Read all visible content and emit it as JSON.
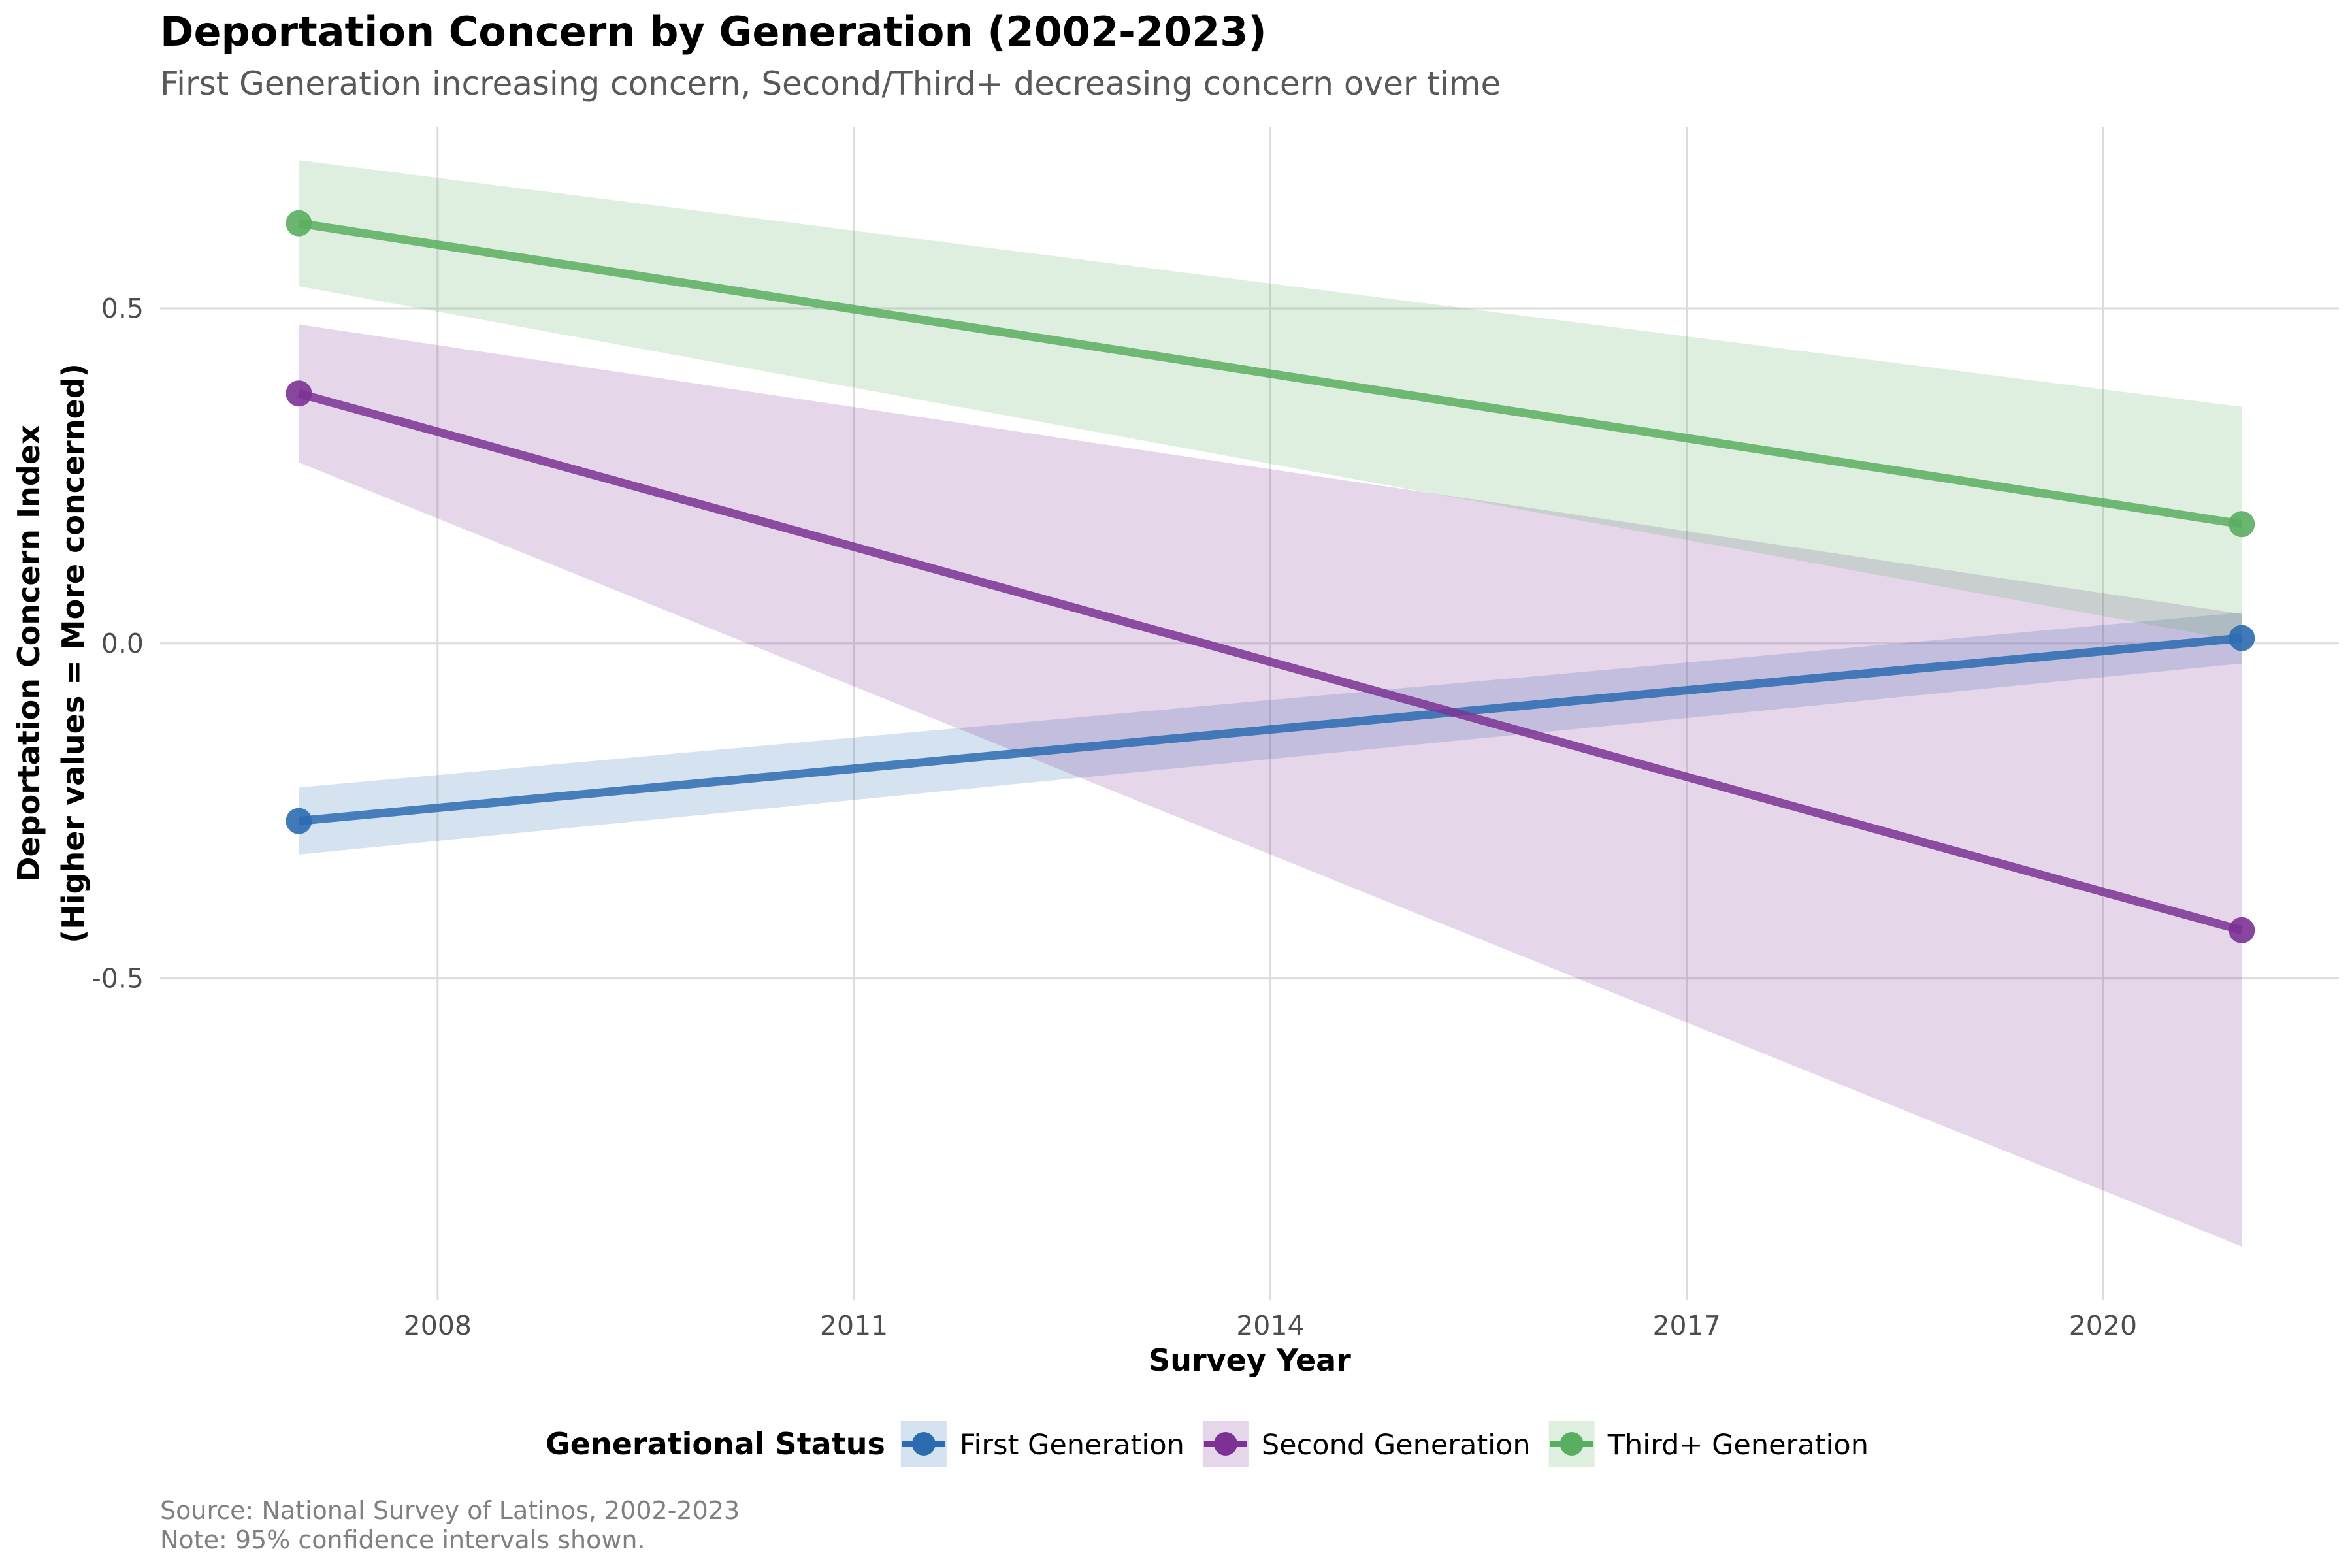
{
  "chart_data": {
    "type": "line",
    "title": "Deportation Concern by Generation (2002-2023)",
    "subtitle": "First Generation increasing concern, Second/Third+ decreasing concern over time",
    "xlabel": "Survey Year",
    "ylabel_line1": "Deportation Concern Index",
    "ylabel_line2": "(Higher values = More concerned)",
    "xlim": [
      2006.0,
      2021.7
    ],
    "ylim": [
      -0.98,
      0.77
    ],
    "x_ticks": [
      2008,
      2011,
      2014,
      2017,
      2020
    ],
    "y_ticks": [
      -0.5,
      0.0,
      0.5
    ],
    "y_tick_labels": [
      "-0.5",
      "0.0",
      "0.5"
    ],
    "grid": true,
    "legend": {
      "title": "Generational Status",
      "position": "bottom"
    },
    "x": [
      2007,
      2021
    ],
    "series": [
      {
        "name": "First Generation",
        "color": "#2b6cb0",
        "values": [
          -0.265,
          0.008
        ],
        "ci_lower": [
          -0.315,
          -0.03
        ],
        "ci_upper": [
          -0.215,
          0.046
        ]
      },
      {
        "name": "Second Generation",
        "color": "#7b3294",
        "values": [
          0.373,
          -0.428
        ],
        "ci_lower": [
          0.27,
          -0.9
        ],
        "ci_upper": [
          0.476,
          0.044
        ]
      },
      {
        "name": "Third+ Generation",
        "color": "#5aae61",
        "values": [
          0.627,
          0.178
        ],
        "ci_lower": [
          0.533,
          0.003
        ],
        "ci_upper": [
          0.721,
          0.353
        ]
      }
    ],
    "caption_line1": "Source: National Survey of Latinos, 2002-2023",
    "caption_line2": "Note: 95% confidence intervals shown."
  }
}
